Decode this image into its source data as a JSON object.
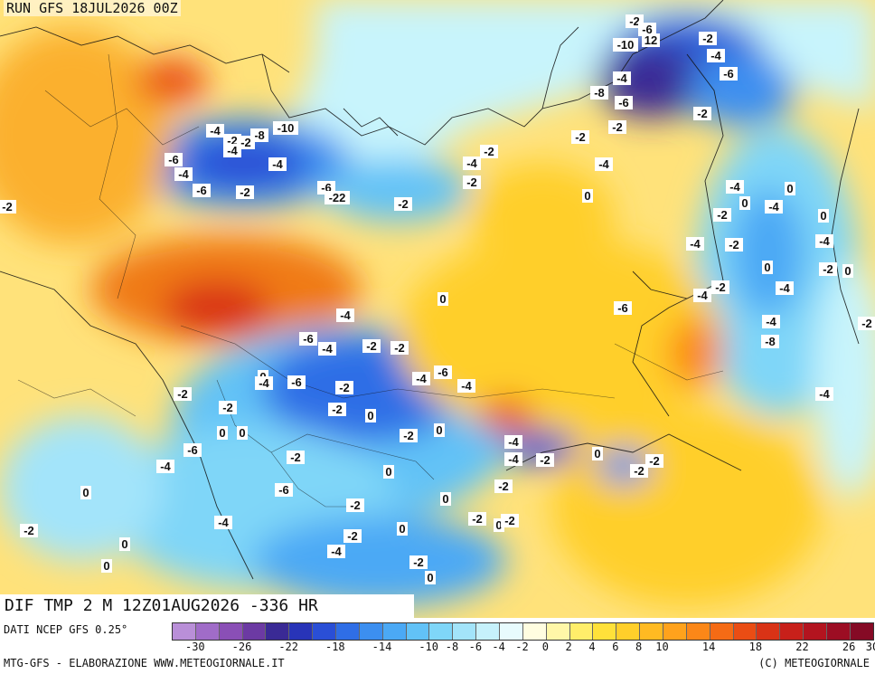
{
  "header": {
    "run": "RUN GFS 18JUL2026 00Z"
  },
  "title": "DIF TMP 2 M 12Z01AUG2026 -336 HR",
  "footer": {
    "source": "DATI NCEP GFS 0.25°",
    "credit": "MTG-GFS - ELABORAZIONE WWW.METEOGIORNALE.IT",
    "copyright": "(C) METEOGIORNALE"
  },
  "colors": {
    "land_base": "#ffe27a",
    "warm_deep": "#f07a18",
    "warm": "#fbb02e",
    "cold_deep": "#2b5fd9",
    "cold": "#5fb3f5",
    "cold_light": "#aee6fb",
    "sea_ice": "#c8f4fc"
  },
  "legend": {
    "swatches": [
      "#b98fd8",
      "#a06cc8",
      "#8a4fb6",
      "#6c3aa3",
      "#3a2a95",
      "#2834b8",
      "#2a4fd6",
      "#2f6ee6",
      "#3c8ff0",
      "#4ba9f5",
      "#62c2f7",
      "#7fd6f8",
      "#a3e4fa",
      "#c6f1fb",
      "#e8fbfd",
      "#fffde0",
      "#fff7a8",
      "#ffee6a",
      "#ffe13a",
      "#ffcf2a",
      "#ffba22",
      "#ffa21c",
      "#fb8718",
      "#f56b15",
      "#ea4d14",
      "#d93316",
      "#c8201a",
      "#b3141f",
      "#9c0d23",
      "#850a25"
    ],
    "ticks": [
      "-30",
      "-26",
      "-22",
      "-18",
      "-14",
      "-10",
      "-8",
      "-6",
      "-4",
      "-2",
      "0",
      "2",
      "4",
      "6",
      "8",
      "10",
      "14",
      "18",
      "22",
      "26",
      "30"
    ]
  },
  "map_labels": [
    "-2",
    "-6",
    "-10",
    "12",
    "-2",
    "-4",
    "-6",
    "-8",
    "-4",
    "-6",
    "-2",
    "-2",
    "-4",
    "-2",
    "-8",
    "-10",
    "-4",
    "-2",
    "-6",
    "-4",
    "-6",
    "-2",
    "-4",
    "-6",
    "-4",
    "-2",
    "-22",
    "-2",
    "-2",
    "-4",
    "-2",
    "0",
    "-2",
    "-4",
    "0",
    "-2",
    "-4",
    "0",
    "0",
    "-4",
    "-2",
    "0",
    "-4",
    "-2",
    "0",
    "-2",
    "-4",
    "-4",
    "0",
    "-6",
    "-4",
    "-2",
    "-8",
    "-4",
    "-6",
    "-4",
    "-2",
    "-2",
    "0",
    "-2",
    "-4",
    "-6",
    "-4",
    "-6",
    "-4",
    "-2",
    "-2",
    "0",
    "-2",
    "0",
    "-4",
    "-2",
    "0",
    "0",
    "-6",
    "-4",
    "-2",
    "0",
    "-4",
    "-4",
    "-2",
    "0",
    "-2",
    "-2",
    "0",
    "-6",
    "-2",
    "0",
    "-2",
    "-4",
    "-2",
    "0",
    "-2",
    "-2",
    "0",
    "-2",
    "0",
    "-4",
    "-2",
    "0",
    "0"
  ]
}
